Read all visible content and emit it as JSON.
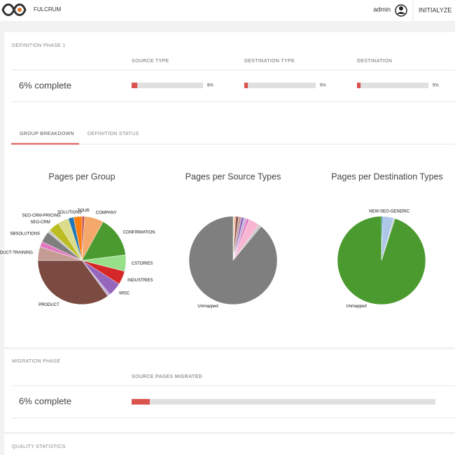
{
  "header": {
    "brand": "FULCRUM",
    "user": "admin",
    "action": "INITIALYZE"
  },
  "definition_phase": {
    "title": "DEFINITION PHASE 1",
    "summary": "6% complete",
    "bars": [
      {
        "label": "SOURCE TYPE",
        "value": 8,
        "value_label": "8%"
      },
      {
        "label": "DESTINATION TYPE",
        "value": 5,
        "value_label": "5%"
      },
      {
        "label": "DESTINATION",
        "value": 5,
        "value_label": "5%"
      }
    ]
  },
  "tabs": [
    "GROUP BREAKDOWN",
    "DEFINITION STATUS"
  ],
  "charts": [
    {
      "type": "pie",
      "title": "Pages per Group",
      "slices": [
        {
          "name": "TOUR",
          "value": 1,
          "color": "#c0504d"
        },
        {
          "name": "COMPANY",
          "value": 7,
          "color": "#f4a86a"
        },
        {
          "name": "CONFIRMATION",
          "value": 15,
          "color": "#4a9a2f"
        },
        {
          "name": "CSTORIES",
          "value": 6,
          "color": "#98df8a"
        },
        {
          "name": "INDUSTRIES",
          "value": 5,
          "color": "#d62728"
        },
        {
          "name": "MISC",
          "value": 5,
          "color": "#9467bd"
        },
        {
          "name": null,
          "value": 1,
          "color": "#c5b0d5"
        },
        {
          "name": "PRODUCT",
          "value": 35,
          "color": "#7b4a40"
        },
        {
          "name": "DUCT-TRAINING",
          "value": 5,
          "color": "#c49c94"
        },
        {
          "name": null,
          "value": 2,
          "color": "#e377c2"
        },
        {
          "name": "SBSOLUTIONS",
          "value": 4,
          "color": "#7f7f7f"
        },
        {
          "name": null,
          "value": 1,
          "color": "#c7c7c7"
        },
        {
          "name": "SEO-CRM",
          "value": 4,
          "color": "#bcbd22"
        },
        {
          "name": "SEO-CRM-PRICING",
          "value": 4,
          "color": "#dbdb8d"
        },
        {
          "name": "SOLUTIONS",
          "value": 2,
          "color": "#1f77b4"
        },
        {
          "name": null,
          "value": 3,
          "color": "#ff7f0e"
        }
      ]
    },
    {
      "type": "pie",
      "title": "Pages per Source Types",
      "slices": [
        {
          "name": null,
          "value": 0.5,
          "color": "#dbdb8d"
        },
        {
          "name": null,
          "value": 0.5,
          "color": "#ff9896"
        },
        {
          "name": null,
          "value": 1,
          "color": "#8c564b"
        },
        {
          "name": null,
          "value": 1,
          "color": "#c49c94"
        },
        {
          "name": null,
          "value": 1,
          "color": "#9467bd"
        },
        {
          "name": null,
          "value": 1,
          "color": "#c5b0d5"
        },
        {
          "name": null,
          "value": 1,
          "color": "#e377c2"
        },
        {
          "name": null,
          "value": 4,
          "color": "#f7b6d2"
        },
        {
          "name": null,
          "value": 1,
          "color": "#c7c7c7"
        },
        {
          "name": "Unmapped",
          "value": 89,
          "color": "#7f7f7f"
        }
      ]
    },
    {
      "type": "pie",
      "title": "Pages per Destination Types",
      "slices": [
        {
          "name": null,
          "value": 0.5,
          "color": "#1f77b4"
        },
        {
          "name": "NEW-SEO-GENERIC",
          "value": 4,
          "color": "#aec7e8"
        },
        {
          "name": null,
          "value": 0.5,
          "color": "#c7c7c7"
        },
        {
          "name": "Unmapped",
          "value": 95,
          "color": "#4a9a2f"
        }
      ]
    }
  ],
  "migration_phase": {
    "title": "MIGRATION PHASE",
    "summary": "6% complete",
    "bars": [
      {
        "label": "SOURCE PAGES MIGRATED",
        "value": 6
      }
    ]
  },
  "quality": {
    "title": "QUALITY STATISTICS"
  }
}
